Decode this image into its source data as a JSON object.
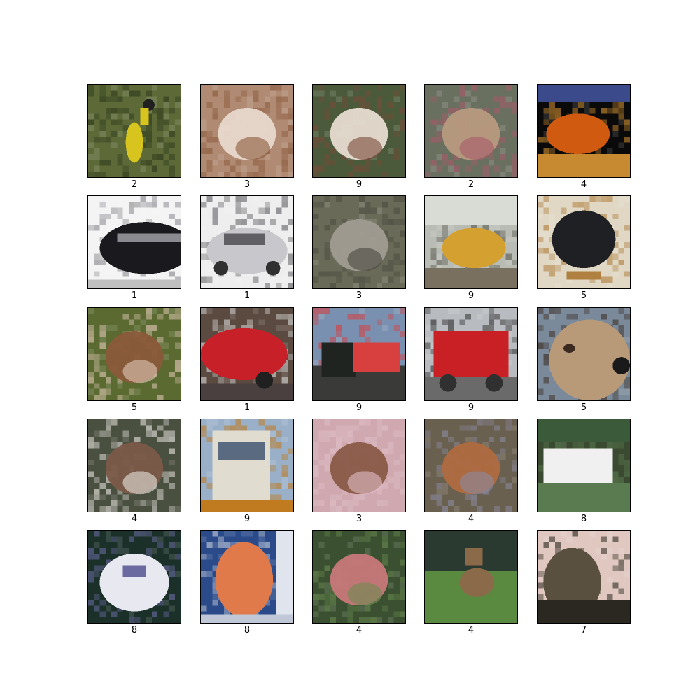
{
  "grid": {
    "rows": 5,
    "columns": 5,
    "images": [
      {
        "label": "2",
        "subject": "yellow-bird-in-grass",
        "colors": {
          "bg": "#5d6a38",
          "a": "#d7c41f",
          "b": "#2f3a1c"
        }
      },
      {
        "label": "3",
        "subject": "cat-closeup",
        "colors": {
          "bg": "#b08a72",
          "a": "#e8d8cc",
          "b": "#8a5a3c"
        }
      },
      {
        "label": "9",
        "subject": "camper-truck",
        "colors": {
          "bg": "#4a5a3a",
          "a": "#e6dcd0",
          "b": "#7a4a3a"
        }
      },
      {
        "label": "2",
        "subject": "bird-on-branch",
        "colors": {
          "bg": "#6a7060",
          "a": "#b89a80",
          "b": "#a85a6a"
        }
      },
      {
        "label": "4",
        "subject": "orange-deer",
        "colors": {
          "bg": "#0a0a0a",
          "a": "#d05a10",
          "b": "#c88a30"
        }
      },
      {
        "label": "1",
        "subject": "black-car",
        "colors": {
          "bg": "#f4f4f4",
          "a": "#1a1a1e",
          "b": "#8a8a90"
        }
      },
      {
        "label": "1",
        "subject": "silver-car",
        "colors": {
          "bg": "#eeeeee",
          "a": "#c8c8cc",
          "b": "#606064"
        }
      },
      {
        "label": "3",
        "subject": "cat-standing",
        "colors": {
          "bg": "#6a6a58",
          "a": "#a09c92",
          "b": "#4a4a40"
        }
      },
      {
        "label": "9",
        "subject": "yellow-dump-truck",
        "colors": {
          "bg": "#b8bcb4",
          "a": "#d4a030",
          "b": "#5a5a50"
        }
      },
      {
        "label": "5",
        "subject": "black-dog",
        "colors": {
          "bg": "#e0d8c4",
          "a": "#1e2024",
          "b": "#b08040"
        }
      },
      {
        "label": "5",
        "subject": "brown-dog-closeup",
        "colors": {
          "bg": "#5a6a30",
          "a": "#8a5a3a",
          "b": "#e0c8b8"
        }
      },
      {
        "label": "1",
        "subject": "red-car",
        "colors": {
          "bg": "#5a4a40",
          "a": "#c82028",
          "b": "#d8d8d8"
        }
      },
      {
        "label": "9",
        "subject": "semi-truck",
        "colors": {
          "bg": "#7a90b0",
          "a": "#202420",
          "b": "#d84040"
        }
      },
      {
        "label": "9",
        "subject": "red-tow-truck",
        "colors": {
          "bg": "#b8bcc0",
          "a": "#c82024",
          "b": "#303030"
        }
      },
      {
        "label": "5",
        "subject": "dog-face",
        "colors": {
          "bg": "#7a8a9a",
          "a": "#b89a78",
          "b": "#3a2a20"
        }
      },
      {
        "label": "4",
        "subject": "deer-in-grass",
        "colors": {
          "bg": "#4a5040",
          "a": "#7a5a48",
          "b": "#e8e4e0"
        }
      },
      {
        "label": "9",
        "subject": "fire-truck-front",
        "colors": {
          "bg": "#9ab0c8",
          "a": "#e0dcd0",
          "b": "#c07a20"
        }
      },
      {
        "label": "3",
        "subject": "cat-on-sheet",
        "colors": {
          "bg": "#d0a8b0",
          "a": "#8a5a48",
          "b": "#e0c0c8"
        }
      },
      {
        "label": "4",
        "subject": "deer-in-leaves",
        "colors": {
          "bg": "#6a6050",
          "a": "#b06a40",
          "b": "#8a8aa0"
        }
      },
      {
        "label": "8",
        "subject": "white-boat",
        "colors": {
          "bg": "#3a4a30",
          "a": "#f0f0f0",
          "b": "#5a7a50"
        }
      },
      {
        "label": "8",
        "subject": "speedboat",
        "colors": {
          "bg": "#1a3028",
          "a": "#e8e8f0",
          "b": "#6a6aa0"
        }
      },
      {
        "label": "8",
        "subject": "orange-ship",
        "colors": {
          "bg": "#2a4a8a",
          "a": "#e07a4a",
          "b": "#c0c8d8"
        }
      },
      {
        "label": "4",
        "subject": "fawn-grazing",
        "colors": {
          "bg": "#3a5030",
          "a": "#c8787a",
          "b": "#6a8a50"
        }
      },
      {
        "label": "4",
        "subject": "stag",
        "colors": {
          "bg": "#5a8a40",
          "a": "#8a6a48",
          "b": "#2a3a30"
        }
      },
      {
        "label": "7",
        "subject": "horse-rider",
        "colors": {
          "bg": "#e0c8c0",
          "a": "#5a5040",
          "b": "#2a2820"
        }
      }
    ]
  }
}
